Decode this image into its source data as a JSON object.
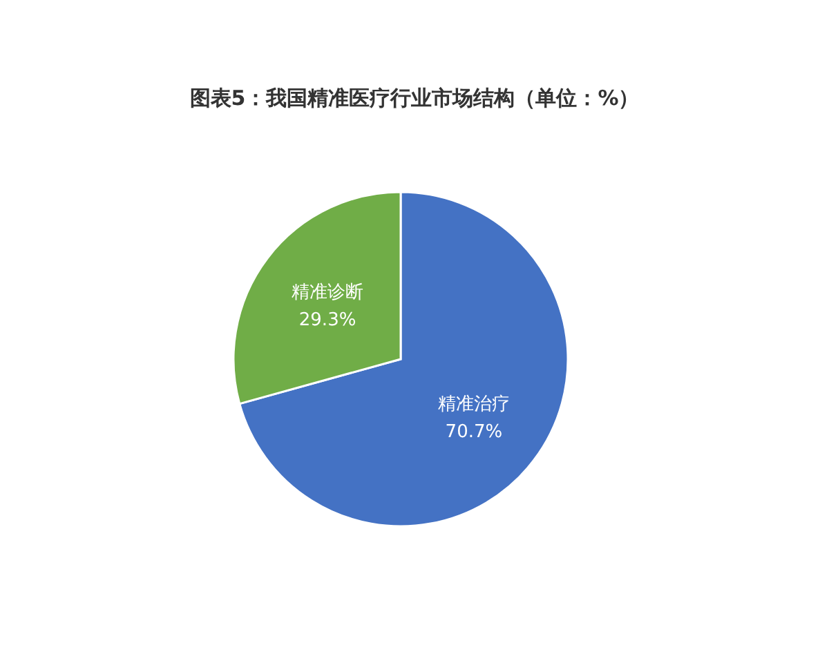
{
  "chart_data": {
    "type": "pie",
    "title": "图表5：我国精准医疗行业市场结构（单位：%）",
    "categories": [
      "精准治疗",
      "精准诊断"
    ],
    "values": [
      70.7,
      29.3
    ],
    "colors": [
      "#4472c4",
      "#70ad47"
    ],
    "value_labels": [
      "70.7%",
      "29.3%"
    ]
  }
}
